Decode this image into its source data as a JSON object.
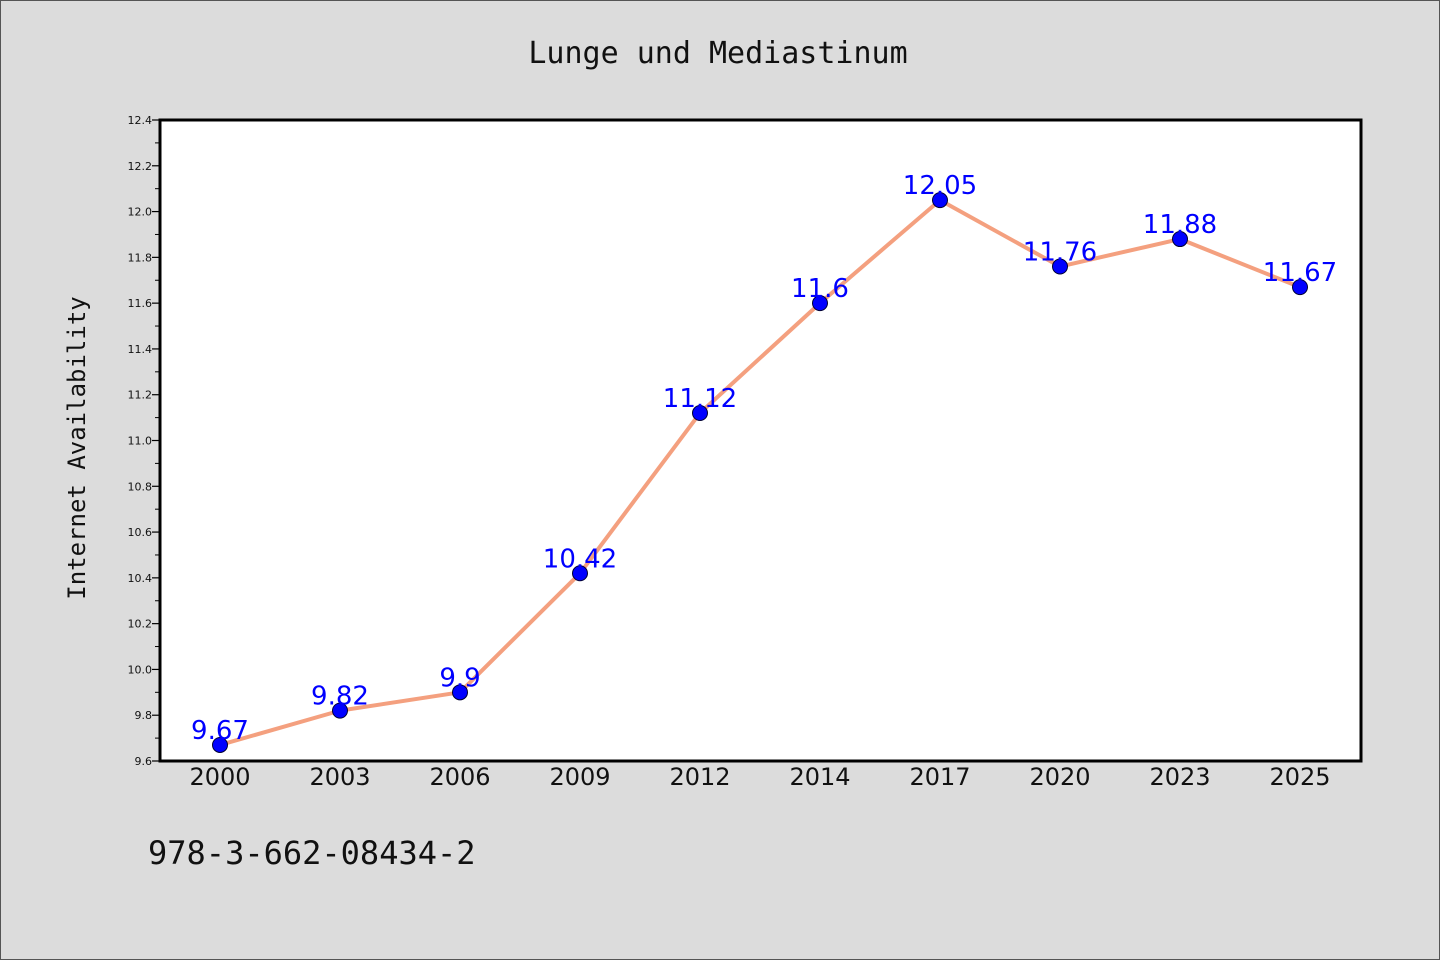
{
  "colors": {
    "background": "#dcdcdc",
    "plot_background": "#ffffff",
    "line": "#f4a07f",
    "marker": "#0000ff",
    "data_label": "#0000ff"
  },
  "chart_data": {
    "type": "line",
    "title": "Lunge und Mediastinum",
    "xlabel": "",
    "ylabel": "Internet Availability",
    "categories": [
      "2000",
      "2003",
      "2006",
      "2009",
      "2012",
      "2014",
      "2017",
      "2020",
      "2023",
      "2025"
    ],
    "series": [
      {
        "values": [
          9.67,
          9.82,
          9.9,
          10.42,
          11.12,
          11.6,
          12.05,
          11.76,
          11.88,
          11.67
        ],
        "labels": [
          "9.67",
          "9.82",
          "9.9",
          "10.42",
          "11.12",
          "11.6",
          "12.05",
          "11.76",
          "11.88",
          "11.67"
        ],
        "marker": "circle"
      }
    ],
    "ylim": [
      9.6,
      12.4
    ],
    "yticks": [
      "9.6",
      "9.8",
      "10.0",
      "10.2",
      "10.4",
      "10.6",
      "10.8",
      "11.0",
      "11.2",
      "11.4",
      "11.6",
      "11.8",
      "12.0",
      "12.2",
      "12.4"
    ],
    "grid": false,
    "legend": "none"
  },
  "footer": {
    "text": "978-3-662-08434-2"
  }
}
